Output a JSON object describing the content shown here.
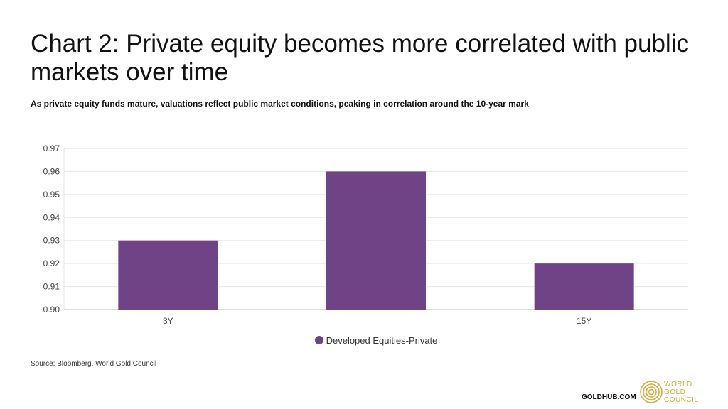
{
  "title": "Chart 2: Private equity becomes more correlated with public markets over time",
  "subtitle": "As private equity funds mature, valuations reflect public market conditions, peaking in correlation around the 10-year mark",
  "source": "Source: Bloomberg, World Gold Council",
  "footer": {
    "site": "GOLDHUB.COM",
    "logo_lines": [
      "WORLD",
      "GOLD",
      "COUNCIL"
    ]
  },
  "colors": {
    "bar": "#704386",
    "logo": "#d9a93c"
  },
  "chart_data": {
    "type": "bar",
    "title": "Chart 2: Private equity becomes more correlated with public markets over time",
    "categories": [
      "3Y",
      "",
      "15Y"
    ],
    "series": [
      {
        "name": "Developed Equities-Private",
        "values": [
          0.93,
          0.96,
          0.92
        ]
      }
    ],
    "ylim": [
      0.9,
      0.97
    ],
    "yticks": [
      "0.90",
      "0.91",
      "0.92",
      "0.93",
      "0.94",
      "0.95",
      "0.96",
      "0.97"
    ],
    "xlabel": "",
    "ylabel": "",
    "grid": true,
    "legend": "bottom"
  }
}
